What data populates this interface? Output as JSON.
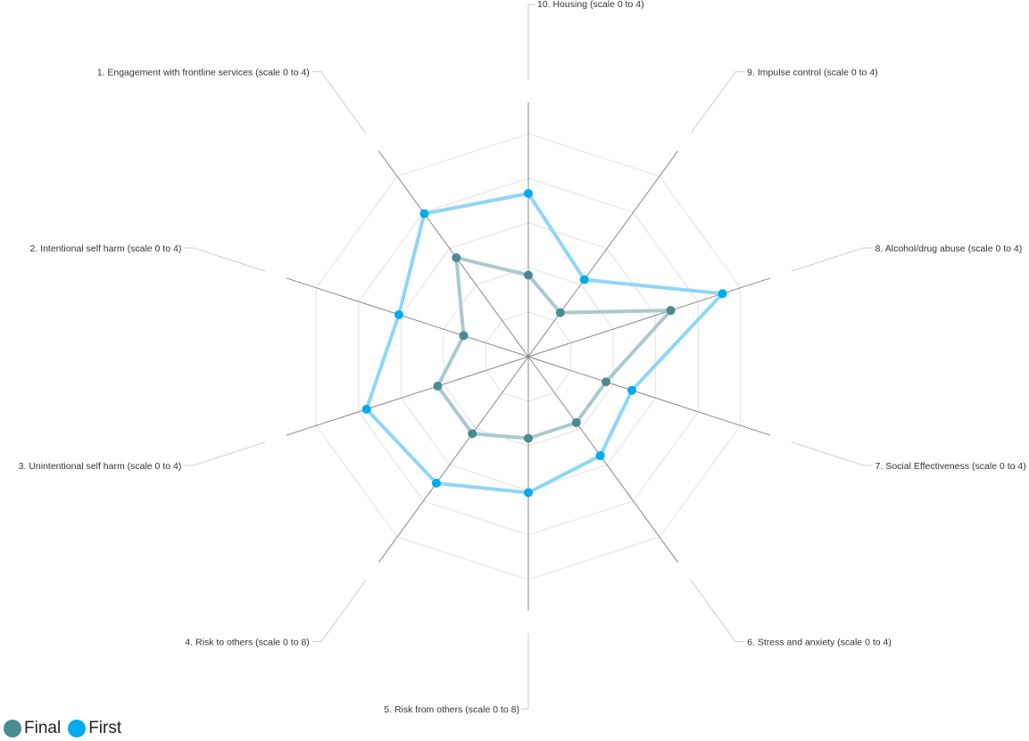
{
  "chart_data": {
    "type": "radar",
    "axes": [
      {
        "label": "10. Housing (scale 0 to 4)",
        "max": 4
      },
      {
        "label": "9. Impulse control (scale 0 to 4)",
        "max": 4
      },
      {
        "label": "8. Alcohol/drug abuse (scale 0 to 4)",
        "max": 4
      },
      {
        "label": "7. Social Effectiveness (scale 0 to 4)",
        "max": 4
      },
      {
        "label": "6. Stress and anxiety (scale 0 to 4)",
        "max": 4
      },
      {
        "label": "5. Risk from others (scale 0 to 8)",
        "max": 8
      },
      {
        "label": "4. Risk to others (scale 0 to 8)",
        "max": 8
      },
      {
        "label": "3. Unintentional self harm (scale 0 to 4)",
        "max": 4
      },
      {
        "label": "2. Intentional self harm (scale 0 to 4)",
        "max": 4
      },
      {
        "label": "1. Engagement with frontline services (scale 0 to 4)",
        "max": 4
      }
    ],
    "levels": 5,
    "grid": true,
    "legend_position": "bottom-left",
    "series": [
      {
        "name": "Final",
        "color": "#4a8a91",
        "line_color": "#a9cacd",
        "values": [
          1.2,
          0.8,
          2.2,
          1.2,
          1.2,
          2.4,
          2.8,
          1.4,
          1.0,
          1.8
        ]
      },
      {
        "name": "First",
        "color": "#00aaee",
        "line_color": "#8fd6f7",
        "values": [
          2.4,
          1.4,
          3.0,
          1.6,
          1.8,
          4.0,
          4.6,
          2.5,
          2.0,
          2.6
        ]
      }
    ]
  }
}
